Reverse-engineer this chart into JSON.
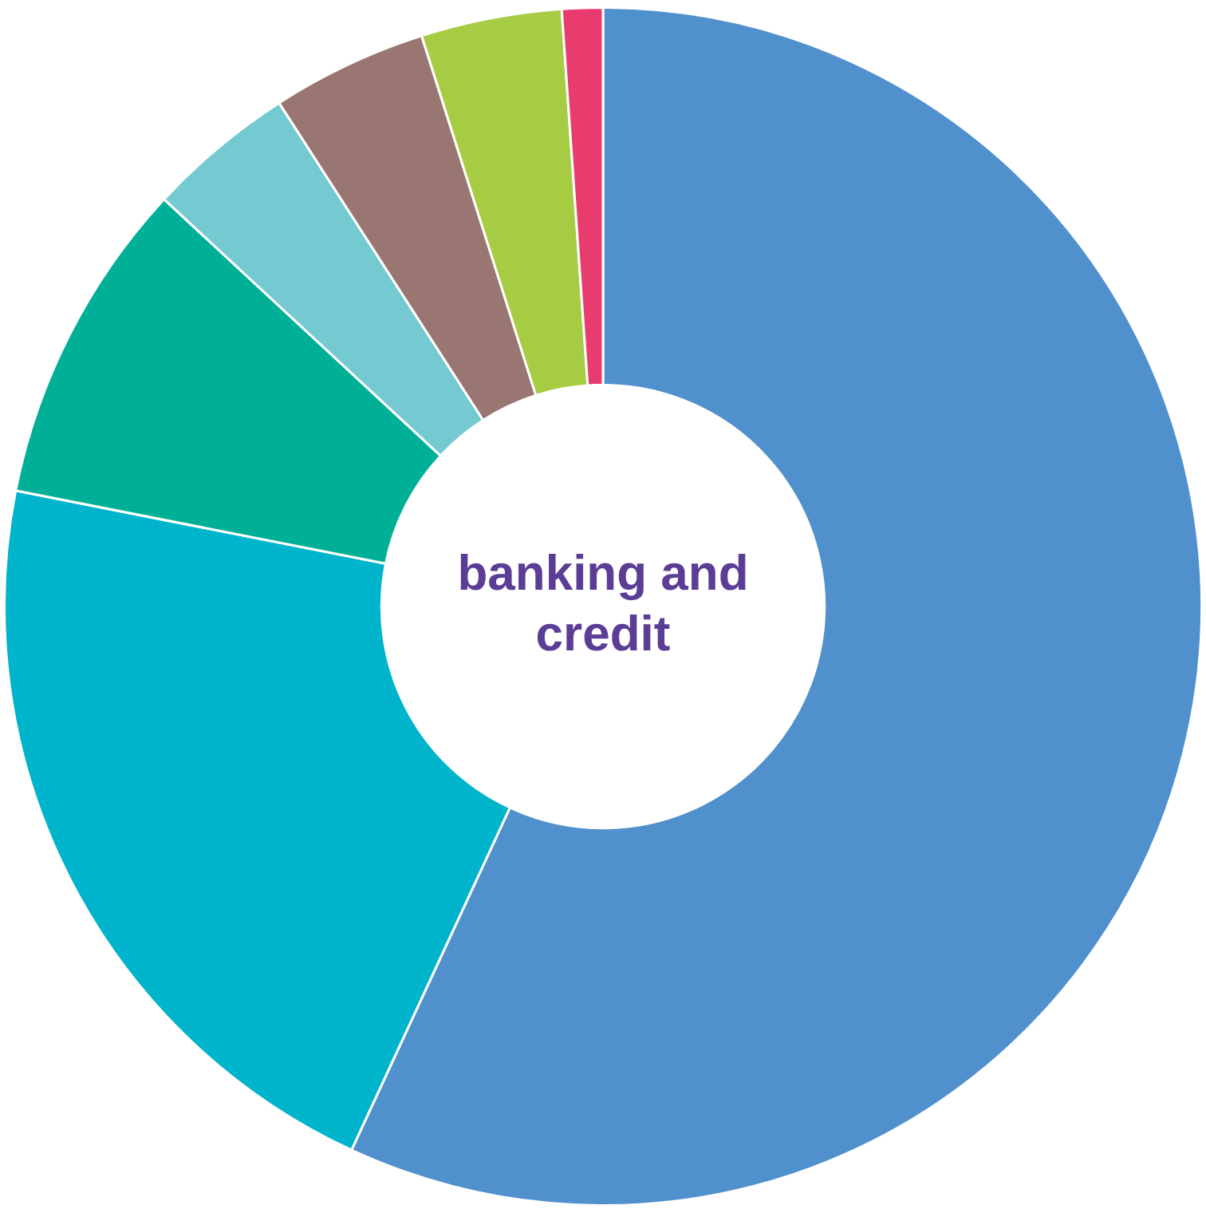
{
  "chart_data": {
    "type": "donut",
    "title": "banking and credit",
    "categories": [
      null,
      null,
      null,
      null,
      null,
      null,
      null
    ],
    "values": [
      56.9,
      21.2,
      8.8,
      4.0,
      4.2,
      3.8,
      1.1
    ],
    "colors": [
      "#5090cc",
      "#00b4cc",
      "#00b096",
      "#74cad0",
      "#9a7672",
      "#a6cc44",
      "#e83c6e"
    ]
  }
}
